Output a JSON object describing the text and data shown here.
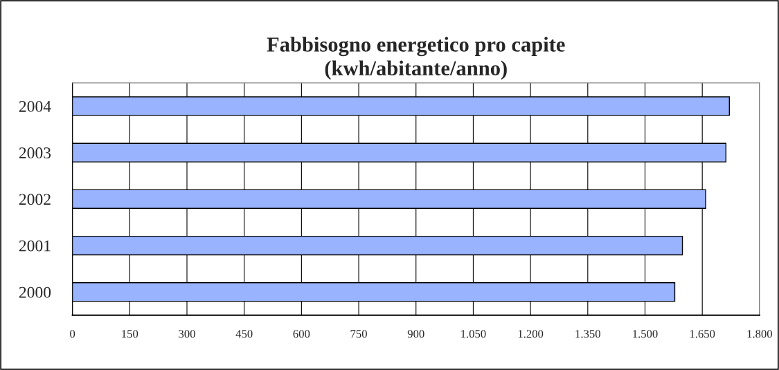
{
  "chart_data": {
    "type": "bar",
    "orientation": "horizontal",
    "title": "Fabbisogno energetico pro capite\n(kwh/abitante/anno)",
    "categories": [
      "2004",
      "2003",
      "2002",
      "2001",
      "2000"
    ],
    "values": [
      1721,
      1712,
      1659,
      1598,
      1578
    ],
    "color": "#99b3ff",
    "xlim": [
      0,
      1800
    ],
    "xticks": [
      0,
      150,
      300,
      450,
      600,
      750,
      900,
      {
        "value": 1050,
        "label": "1.050"
      },
      {
        "value": 1200,
        "label": "1.200"
      },
      {
        "value": 1350,
        "label": "1.350"
      },
      {
        "value": 1500,
        "label": "1.500"
      },
      {
        "value": 1650,
        "label": "1.650"
      },
      {
        "value": 1800,
        "label": "1.800"
      }
    ],
    "grid": "x",
    "legend": false
  }
}
